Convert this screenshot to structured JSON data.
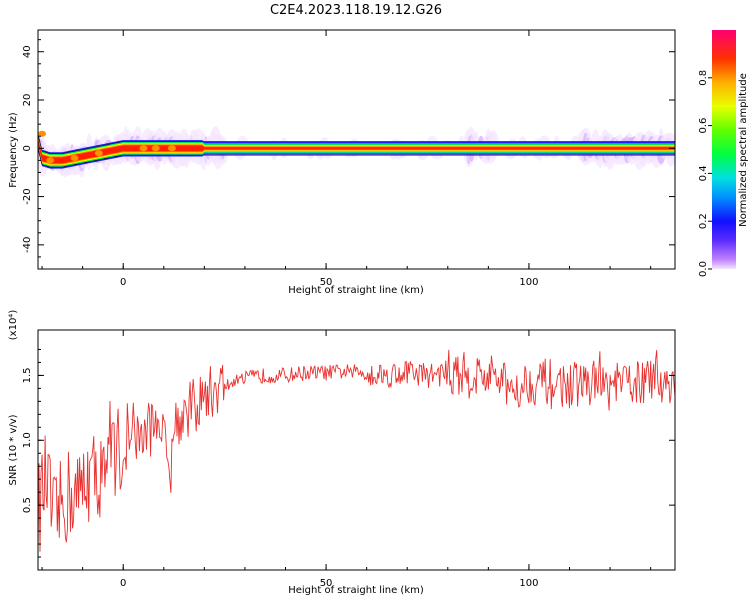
{
  "title": "C2E4.2023.118.19.12.G26",
  "colorbar": {
    "label": "Normalized spectral amplitude",
    "ticks": [
      "0.0",
      "0.2",
      "0.4",
      "0.6",
      "0.8"
    ],
    "tick_values": [
      0.0,
      0.2,
      0.4,
      0.6,
      0.8
    ],
    "range": [
      0,
      1
    ]
  },
  "chart_data": [
    {
      "type": "heatmap",
      "xlabel": "Height of straight line (km)",
      "ylabel": "Frequency (Hz)",
      "xlim": [
        -21,
        136
      ],
      "ylim": [
        -50,
        49
      ],
      "xticks": [
        0,
        50,
        100
      ],
      "xtick_labels": [
        "0",
        "50",
        "100"
      ],
      "yticks": [
        -40,
        -20,
        0,
        20,
        40
      ],
      "ytick_labels": [
        "-40",
        "-20",
        "0",
        "20",
        "40"
      ],
      "ridge": {
        "x": [
          -21,
          -20,
          -18,
          -15,
          -12,
          -9,
          -6,
          -3,
          0,
          5,
          8,
          10,
          14,
          20,
          30,
          60,
          88,
          100,
          115,
          120,
          130,
          136
        ],
        "freq": [
          3,
          -4,
          -5,
          -5,
          -4,
          -3,
          -2,
          -1,
          0,
          0,
          0,
          0,
          0,
          0,
          0,
          0,
          0,
          0,
          0,
          0,
          0,
          0
        ]
      },
      "colorscale": [
        "#f3e6ff",
        "#d9b3ff",
        "#b070ff",
        "#2020ff",
        "#00bfff",
        "#00e0c0",
        "#00ff00",
        "#a0ff00",
        "#ffff00",
        "#ff9000",
        "#ff2000",
        "#ff0060"
      ]
    },
    {
      "type": "line",
      "xlabel": "Height of straight line (km)",
      "ylabel": "SNR (10 * v/v)",
      "y_multiplier": "(x10⁴)",
      "xlim": [
        -21,
        136
      ],
      "ylim": [
        0.0,
        1.85
      ],
      "xticks": [
        0,
        50,
        100
      ],
      "xtick_labels": [
        "0",
        "50",
        "100"
      ],
      "yticks": [
        0.5,
        1.0,
        1.5
      ],
      "ytick_labels": [
        "0.5",
        "1.0",
        "1.5"
      ],
      "color": "#e8312f",
      "series": [
        {
          "x": [
            -21,
            -19,
            -17,
            -15,
            -13,
            -11,
            -9,
            -7,
            -5,
            -3,
            -1,
            1,
            3,
            5,
            7,
            9,
            11,
            13,
            15,
            17,
            19,
            21,
            23,
            25,
            28,
            31,
            35,
            40,
            45,
            50,
            55,
            60,
            65,
            70,
            75,
            80,
            85,
            90,
            93,
            95,
            100,
            105,
            110,
            115,
            120,
            125,
            130,
            136
          ],
          "y": [
            0.45,
            0.7,
            0.35,
            0.5,
            0.6,
            0.55,
            0.75,
            0.7,
            0.8,
            1.0,
            0.9,
            0.95,
            1.0,
            1.05,
            1.1,
            1.2,
            0.8,
            1.15,
            1.2,
            1.25,
            1.3,
            1.35,
            1.4,
            1.42,
            1.45,
            1.48,
            1.5,
            1.5,
            1.52,
            1.52,
            1.53,
            1.52,
            1.5,
            1.53,
            1.5,
            1.52,
            1.5,
            1.5,
            1.45,
            1.4,
            1.45,
            1.45,
            1.42,
            1.45,
            1.4,
            1.45,
            1.45,
            1.45
          ]
        }
      ]
    }
  ]
}
